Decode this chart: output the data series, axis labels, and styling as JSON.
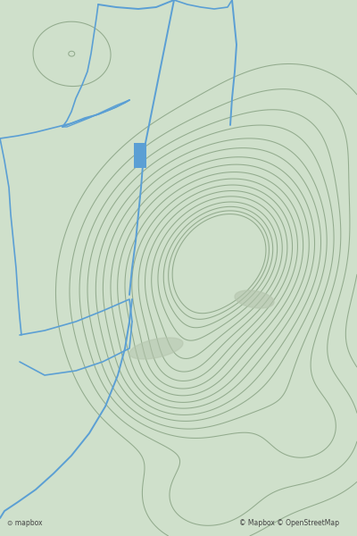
{
  "bg_color": "#cfe0cb",
  "contour_color": "#8fa88a",
  "contour_linewidth": 0.75,
  "road_color": "#5b9fd4",
  "road_linewidth": 1.4,
  "figsize": [
    4.0,
    6.0
  ],
  "dpi": 100,
  "attribution": "© Mapbox © OpenStreetMap"
}
